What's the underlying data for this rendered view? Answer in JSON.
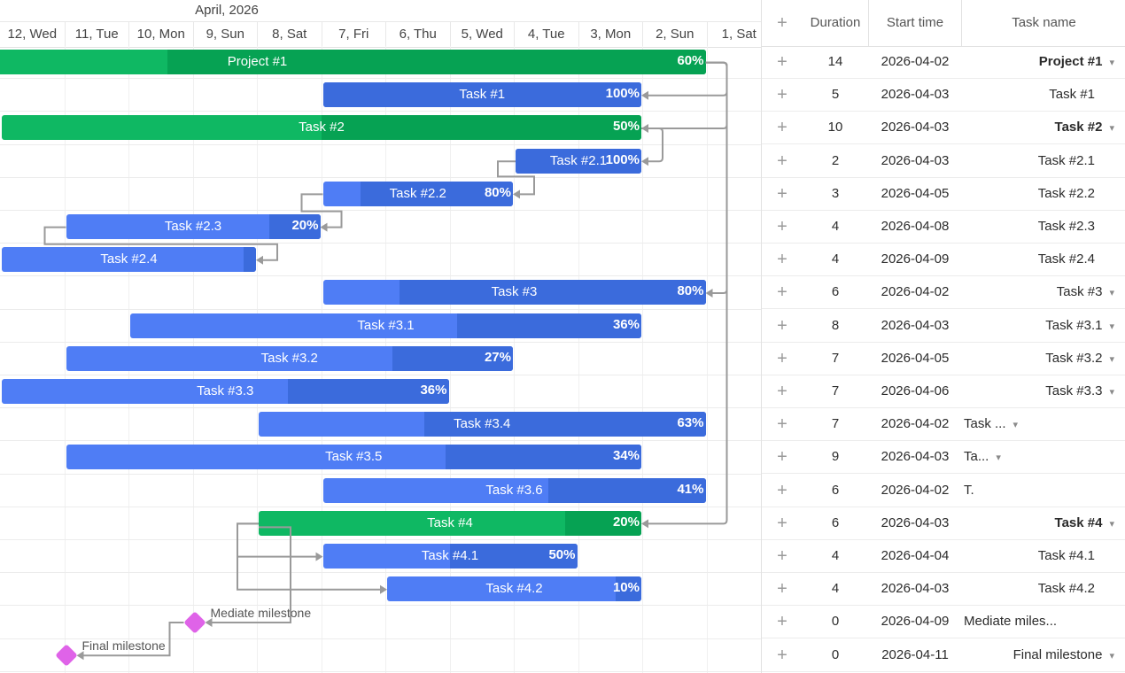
{
  "timeline": {
    "month": "April, 2026",
    "days": [
      "12, Wed",
      "11, Tue",
      "10, Mon",
      "9, Sun",
      "8, Sat",
      "7, Fri",
      "6, Thu",
      "5, Wed",
      "4, Tue",
      "3, Mon",
      "2, Sun",
      "1, Sat"
    ]
  },
  "grid": {
    "add_symbol": "+",
    "columns": {
      "duration": "Duration",
      "start": "Start time",
      "name": "Task name"
    }
  },
  "tasks": [
    {
      "name": "Project #1",
      "display_name": "Project #1",
      "duration": "14",
      "start": "2026-04-02",
      "progress": "60%",
      "progress_value": 0.6,
      "type": "project",
      "expandable": true
    },
    {
      "name": "Task #1",
      "display_name": "Task #1",
      "duration": "5",
      "start": "2026-04-03",
      "progress": "100%",
      "progress_value": 1.0,
      "type": "task",
      "expandable": false
    },
    {
      "name": "Task #2",
      "display_name": "Task #2",
      "duration": "10",
      "start": "2026-04-03",
      "progress": "50%",
      "progress_value": 0.5,
      "type": "project",
      "expandable": true
    },
    {
      "name": "Task #2.1",
      "display_name": "Task #2.1",
      "duration": "2",
      "start": "2026-04-03",
      "progress": "100%",
      "progress_value": 1.0,
      "type": "task",
      "expandable": false
    },
    {
      "name": "Task #2.2",
      "display_name": "Task #2.2",
      "duration": "3",
      "start": "2026-04-05",
      "progress": "80%",
      "progress_value": 0.8,
      "type": "task",
      "expandable": false
    },
    {
      "name": "Task #2.3",
      "display_name": "Task #2.3",
      "duration": "4",
      "start": "2026-04-08",
      "progress": "20%",
      "progress_value": 0.2,
      "type": "task",
      "expandable": false
    },
    {
      "name": "Task #2.4",
      "display_name": "Task #2.4",
      "duration": "4",
      "start": "2026-04-09",
      "progress": "",
      "progress_value": 0.05,
      "type": "task",
      "expandable": false
    },
    {
      "name": "Task #3",
      "display_name": "Task #3",
      "duration": "6",
      "start": "2026-04-02",
      "progress": "80%",
      "progress_value": 0.8,
      "type": "task",
      "expandable": true
    },
    {
      "name": "Task #3.1",
      "display_name": "Task #3.1",
      "duration": "8",
      "start": "2026-04-03",
      "progress": "36%",
      "progress_value": 0.36,
      "type": "task",
      "expandable": true
    },
    {
      "name": "Task #3.2",
      "display_name": "Task #3.2",
      "duration": "7",
      "start": "2026-04-05",
      "progress": "27%",
      "progress_value": 0.27,
      "type": "task",
      "expandable": true
    },
    {
      "name": "Task #3.3",
      "display_name": "Task #3.3",
      "duration": "7",
      "start": "2026-04-06",
      "progress": "36%",
      "progress_value": 0.36,
      "type": "task",
      "expandable": true
    },
    {
      "name": "Task #3.4",
      "display_name": "Task ...",
      "duration": "7",
      "start": "2026-04-02",
      "progress": "63%",
      "progress_value": 0.63,
      "type": "task",
      "expandable": true
    },
    {
      "name": "Task #3.5",
      "display_name": "Ta...",
      "duration": "9",
      "start": "2026-04-03",
      "progress": "34%",
      "progress_value": 0.34,
      "type": "task",
      "expandable": true
    },
    {
      "name": "Task #3.6",
      "display_name": "T.",
      "duration": "6",
      "start": "2026-04-02",
      "progress": "41%",
      "progress_value": 0.41,
      "type": "task",
      "expandable": false
    },
    {
      "name": "Task #4",
      "display_name": "Task #4",
      "duration": "6",
      "start": "2026-04-03",
      "progress": "20%",
      "progress_value": 0.2,
      "type": "project",
      "expandable": true
    },
    {
      "name": "Task #4.1",
      "display_name": "Task #4.1",
      "duration": "4",
      "start": "2026-04-04",
      "progress": "50%",
      "progress_value": 0.5,
      "type": "task",
      "expandable": false
    },
    {
      "name": "Task #4.2",
      "display_name": "Task #4.2",
      "duration": "4",
      "start": "2026-04-03",
      "progress": "10%",
      "progress_value": 0.1,
      "type": "task",
      "expandable": false
    },
    {
      "name": "Mediate milestone",
      "display_name": "Mediate miles...",
      "duration": "0",
      "start": "2026-04-09",
      "progress": "",
      "progress_value": 0,
      "type": "milestone",
      "expandable": false
    },
    {
      "name": "Final milestone",
      "display_name": "Final milestone",
      "duration": "0",
      "start": "2026-04-11",
      "progress": "",
      "progress_value": 0,
      "type": "milestone",
      "expandable": true
    }
  ],
  "colors": {
    "task": "#4f7df5",
    "task_done": "#3b6bdc",
    "project": "#0fb863",
    "project_done": "#06a253",
    "milestone": "#df63e8",
    "link": "#9a9a9a"
  }
}
